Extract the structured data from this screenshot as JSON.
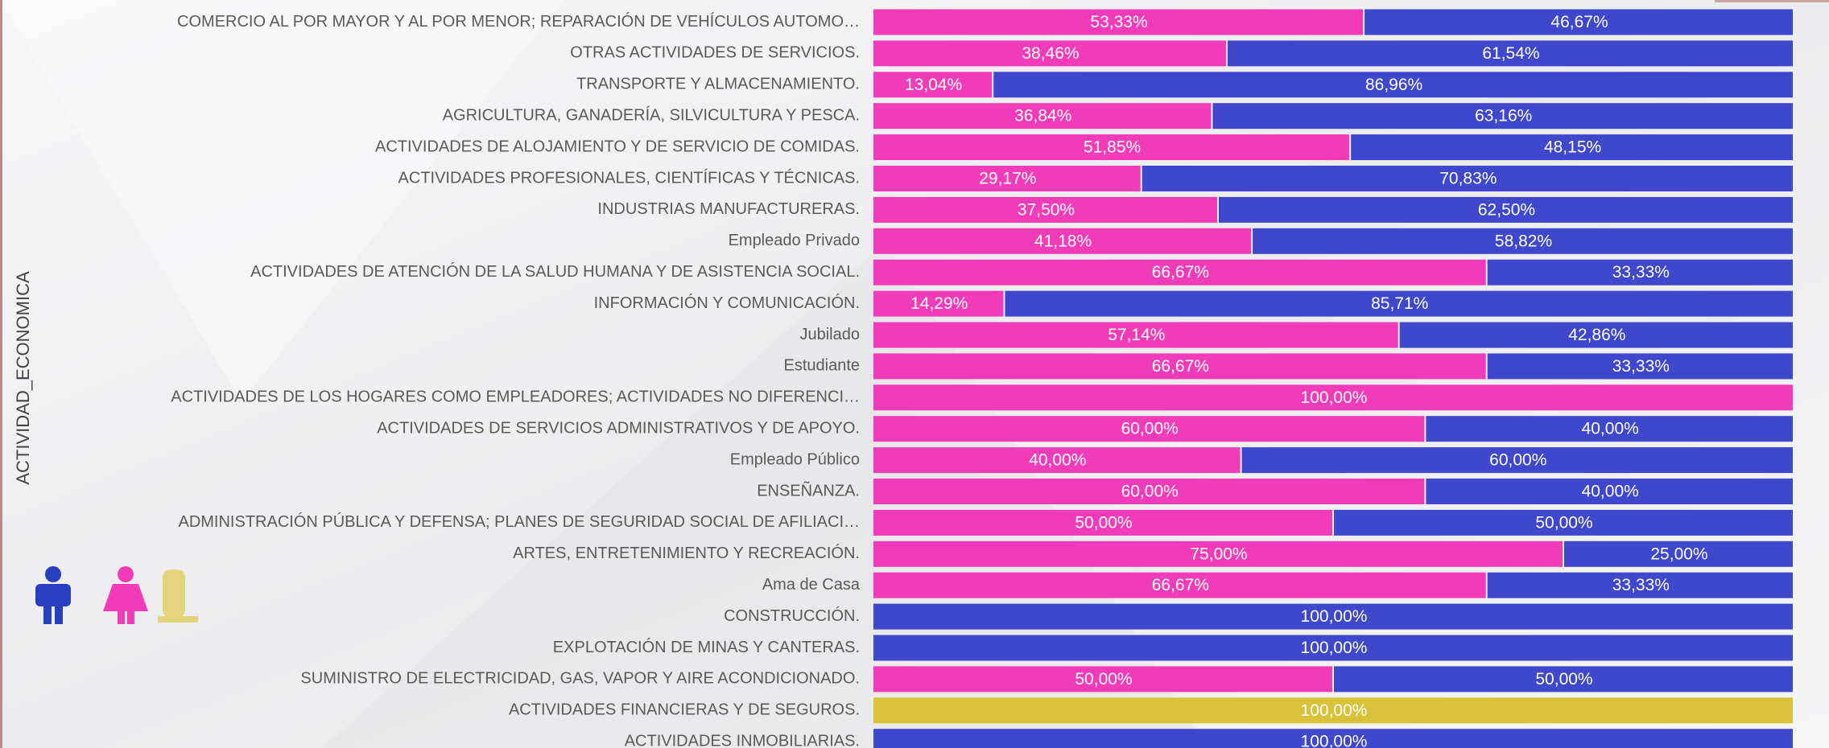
{
  "chart_data": {
    "type": "stacked_bar_horizontal_100",
    "y_axis_title": "ACTIVIDAD_ECONOMICA",
    "categories": [
      "COMERCIO AL POR MAYOR Y AL POR MENOR; REPARACIÓN DE VEHÍCULOS AUTOMO…",
      "OTRAS ACTIVIDADES DE SERVICIOS.",
      "TRANSPORTE Y ALMACENAMIENTO.",
      "AGRICULTURA, GANADERÍA, SILVICULTURA Y PESCA.",
      "ACTIVIDADES DE ALOJAMIENTO Y DE SERVICIO DE COMIDAS.",
      "ACTIVIDADES PROFESIONALES, CIENTÍFICAS Y TÉCNICAS.",
      "INDUSTRIAS MANUFACTURERAS.",
      "Empleado Privado",
      "ACTIVIDADES DE ATENCIÓN DE LA SALUD HUMANA Y DE ASISTENCIA SOCIAL.",
      "INFORMACIÓN Y COMUNICACIÓN.",
      "Jubilado",
      "Estudiante",
      "ACTIVIDADES DE LOS HOGARES COMO EMPLEADORES; ACTIVIDADES NO DIFERENCI…",
      "ACTIVIDADES DE SERVICIOS ADMINISTRATIVOS Y DE APOYO.",
      "Empleado Público",
      "ENSEÑANZA.",
      "ADMINISTRACIÓN PÚBLICA Y DEFENSA; PLANES DE SEGURIDAD SOCIAL DE AFILIACI…",
      "ARTES, ENTRETENIMIENTO Y RECREACIÓN.",
      "Ama de Casa",
      "CONSTRUCCIÓN.",
      "EXPLOTACIÓN DE MINAS Y CANTERAS.",
      "SUMINISTRO DE ELECTRICIDAD, GAS, VAPOR Y AIRE ACONDICIONADO.",
      "ACTIVIDADES FINANCIERAS Y DE SEGUROS.",
      "ACTIVIDADES INMOBILIARIAS."
    ],
    "xlim": [
      0,
      100
    ],
    "series": [
      {
        "color": "#f03cb8",
        "values": [
          53.33,
          38.46,
          13.04,
          36.84,
          51.85,
          29.17,
          37.5,
          41.18,
          66.67,
          14.29,
          57.14,
          66.67,
          100,
          60,
          40,
          60,
          50,
          75,
          66.67,
          null,
          null,
          50,
          null,
          null
        ],
        "value_labels": [
          "53,33%",
          "38,46%",
          "13,04%",
          "36,84%",
          "51,85%",
          "29,17%",
          "37,50%",
          "41,18%",
          "66,67%",
          "14,29%",
          "57,14%",
          "66,67%",
          "100,00%",
          "60,00%",
          "40,00%",
          "60,00%",
          "50,00%",
          "75,00%",
          "66,67%",
          null,
          null,
          "50,00%",
          null,
          null
        ]
      },
      {
        "color": "#3f48cc",
        "values": [
          46.67,
          61.54,
          86.96,
          63.16,
          48.15,
          70.83,
          62.5,
          58.82,
          33.33,
          85.71,
          42.86,
          33.33,
          null,
          40,
          60,
          40,
          50,
          25,
          33.33,
          100,
          100,
          50,
          null,
          100
        ],
        "value_labels": [
          "46,67%",
          "61,54%",
          "86,96%",
          "63,16%",
          "48,15%",
          "70,83%",
          "62,50%",
          "58,82%",
          "33,33%",
          "85,71%",
          "42,86%",
          "33,33%",
          null,
          "40,00%",
          "60,00%",
          "40,00%",
          "50,00%",
          "25,00%",
          "33,33%",
          "100,00%",
          "100,00%",
          "50,00%",
          null,
          "100,00%"
        ]
      },
      {
        "color": "#d8c23a",
        "values": [
          null,
          null,
          null,
          null,
          null,
          null,
          null,
          null,
          null,
          null,
          null,
          null,
          null,
          null,
          null,
          null,
          null,
          null,
          null,
          null,
          null,
          null,
          100,
          null
        ],
        "value_labels": [
          null,
          null,
          null,
          null,
          null,
          null,
          null,
          null,
          null,
          null,
          null,
          null,
          null,
          null,
          null,
          null,
          null,
          null,
          null,
          null,
          null,
          null,
          "100,00%",
          null
        ]
      }
    ]
  }
}
